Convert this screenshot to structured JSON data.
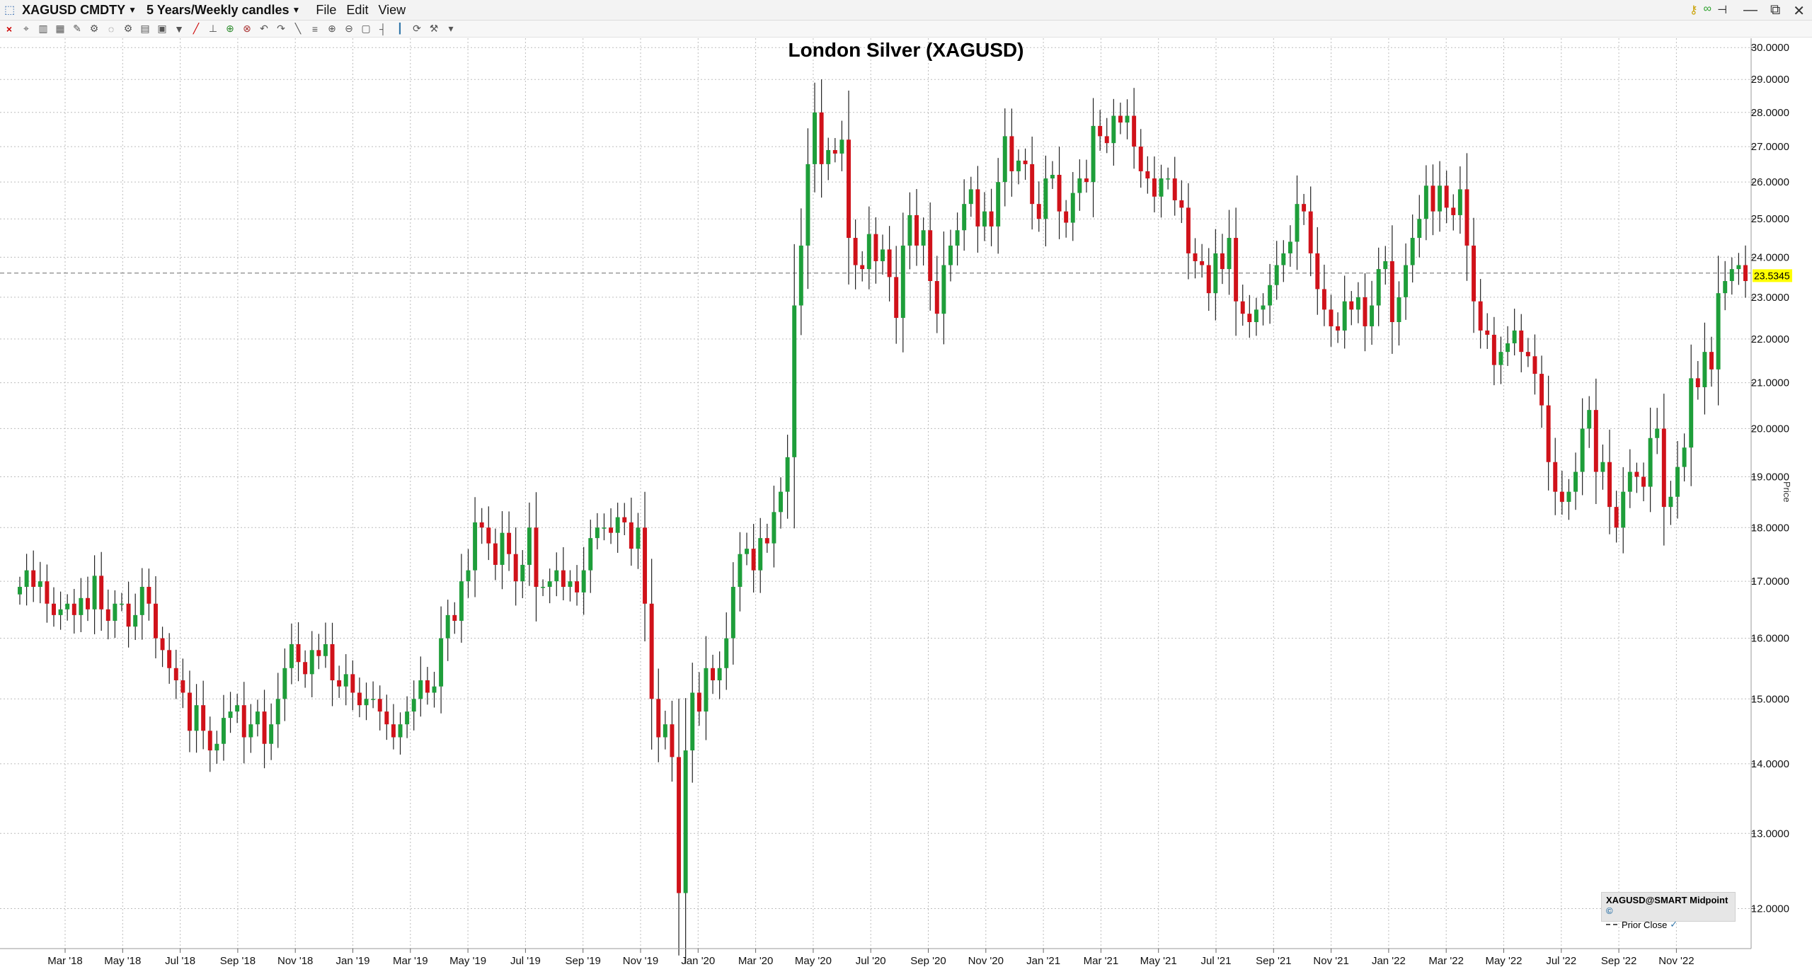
{
  "window": {
    "symbol": "XAGUSD CMDTY",
    "period": "5 Years/Weekly candles",
    "menus": [
      "File",
      "Edit",
      "View"
    ]
  },
  "toolbar_icons": [
    "close-icon",
    "pin-icon",
    "bars-icon",
    "grid-icon",
    "brush-icon",
    "wand-icon",
    "circle-icon",
    "settings-icon",
    "table-icon",
    "layout-icon",
    "triangle-icon",
    "pen-icon",
    "ruler-icon",
    "circle-plus-icon",
    "target-icon",
    "undo-icon",
    "redo-icon",
    "line-icon",
    "fib-icon",
    "zoom-in-icon",
    "zoom-out-icon",
    "fit-icon",
    "bar-type-icon",
    "candle-type-icon",
    "refresh-icon",
    "wrench-icon",
    "dropdown-icon"
  ],
  "legend": {
    "series_label": "XAGUSD@SMART Midpoint",
    "prior_close_label": "Prior Close"
  },
  "axis": {
    "price_label": "Price",
    "current_price": "23.5345"
  },
  "colors": {
    "up": "#1e9e3a",
    "down": "#d0121a",
    "wick": "#222222",
    "grid": "#bdbdbd",
    "price_tag": "#ffff00"
  },
  "chart_data": {
    "type": "candlestick",
    "title": "London Silver (XAGUSD)",
    "y_scale": "log",
    "ylim": [
      11.5,
      30.3
    ],
    "y_ticks": [
      "12.0000",
      "13.0000",
      "14.0000",
      "15.0000",
      "16.0000",
      "17.0000",
      "18.0000",
      "19.0000",
      "20.0000",
      "21.0000",
      "22.0000",
      "23.0000",
      "24.0000",
      "25.0000",
      "26.0000",
      "27.0000",
      "28.0000",
      "29.0000",
      "30.0000"
    ],
    "x_ticks": [
      "Mar '18",
      "May '18",
      "Jul '18",
      "Sep '18",
      "Nov '18",
      "Jan '19",
      "Mar '19",
      "May '19",
      "Jul '19",
      "Sep '19",
      "Nov '19",
      "Jan '20",
      "Mar '20",
      "May '20",
      "Jul '20",
      "Sep '20",
      "Nov '20",
      "Jan '21",
      "Mar '21",
      "May '21",
      "Jul '21",
      "Sep '21",
      "Nov '21",
      "Jan '22",
      "Mar '22",
      "May '22",
      "Jul '22",
      "Sep '22",
      "Nov '22"
    ],
    "prior_close": 23.6,
    "weekly_closes": [
      16.9,
      17.2,
      16.9,
      17.0,
      16.6,
      16.4,
      16.5,
      16.6,
      16.4,
      16.7,
      16.5,
      17.1,
      16.5,
      16.3,
      16.6,
      16.6,
      16.2,
      16.4,
      16.9,
      16.6,
      16.0,
      15.8,
      15.5,
      15.3,
      15.1,
      14.5,
      14.9,
      14.5,
      14.2,
      14.3,
      14.7,
      14.8,
      14.9,
      14.4,
      14.6,
      14.8,
      14.3,
      14.6,
      15.0,
      15.5,
      15.9,
      15.6,
      15.4,
      15.8,
      15.7,
      15.9,
      15.3,
      15.2,
      15.4,
      15.1,
      14.9,
      15.0,
      15.0,
      14.8,
      14.6,
      14.4,
      14.6,
      14.8,
      15.0,
      15.3,
      15.1,
      15.2,
      16.0,
      16.4,
      16.3,
      17.0,
      17.2,
      18.1,
      18.0,
      17.7,
      17.3,
      17.9,
      17.5,
      17.0,
      17.3,
      18.0,
      16.9,
      16.9,
      17.0,
      17.2,
      16.9,
      17.0,
      16.8,
      17.2,
      17.8,
      18.0,
      18.0,
      17.9,
      18.2,
      18.1,
      17.6,
      18.0,
      16.6,
      15.0,
      14.4,
      14.6,
      14.1,
      12.2,
      14.2,
      15.1,
      14.8,
      15.5,
      15.3,
      15.5,
      16.0,
      16.9,
      17.5,
      17.6,
      17.2,
      17.8,
      17.7,
      18.3,
      18.7,
      19.4,
      22.8,
      24.3,
      26.5,
      28.0,
      26.5,
      26.9,
      26.8,
      27.2,
      24.5,
      23.8,
      23.7,
      24.6,
      23.9,
      24.2,
      23.5,
      22.5,
      24.3,
      25.1,
      24.3,
      24.7,
      23.4,
      22.6,
      23.8,
      24.3,
      24.7,
      25.4,
      25.8,
      24.8,
      25.2,
      24.8,
      26.0,
      27.3,
      26.3,
      26.6,
      26.5,
      25.4,
      25.0,
      26.1,
      26.2,
      25.2,
      24.9,
      25.7,
      26.1,
      26.0,
      27.6,
      27.3,
      27.1,
      27.9,
      27.7,
      27.9,
      27.0,
      26.3,
      26.1,
      25.6,
      26.1,
      26.1,
      25.5,
      25.3,
      24.1,
      23.9,
      23.8,
      23.1,
      24.1,
      23.7,
      24.5,
      22.9,
      22.6,
      22.4,
      22.7,
      22.8,
      23.3,
      23.8,
      24.1,
      24.4,
      25.4,
      25.2,
      24.1,
      23.2,
      22.7,
      22.3,
      22.2,
      22.9,
      22.7,
      23.0,
      22.3,
      22.8,
      23.7,
      23.9,
      22.4,
      23.0,
      23.8,
      24.5,
      25.0,
      25.9,
      25.2,
      25.9,
      25.3,
      25.1,
      25.8,
      24.3,
      22.9,
      22.2,
      22.1,
      21.4,
      21.7,
      21.9,
      22.2,
      21.7,
      21.6,
      21.2,
      20.5,
      19.3,
      18.7,
      18.5,
      18.7,
      19.1,
      20.0,
      20.4,
      19.1,
      19.3,
      18.4,
      18.0,
      18.7,
      19.1,
      19.0,
      18.8,
      19.8,
      20.0,
      18.4,
      18.6,
      19.2,
      19.6,
      21.1,
      20.9,
      21.7,
      21.3,
      23.1,
      23.4,
      23.7,
      23.8,
      23.4
    ]
  }
}
